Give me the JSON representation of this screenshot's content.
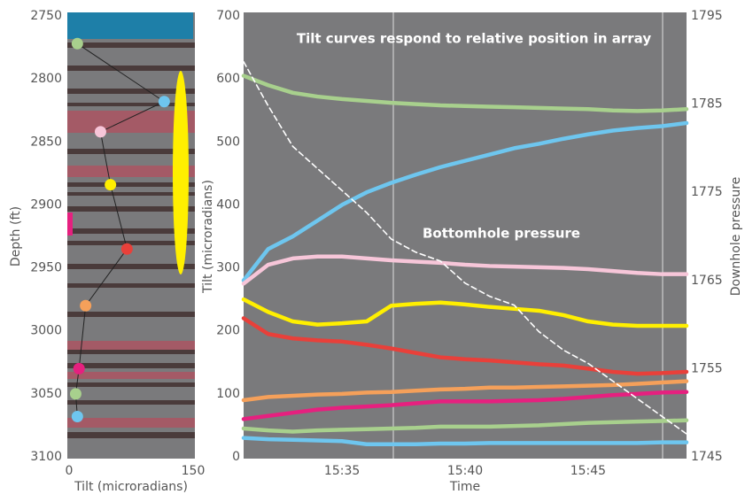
{
  "chart_data": [
    {
      "type": "scatter",
      "xlabel": "Tilt (microradians)",
      "ylabel": "Depth (ft)",
      "x": [
        10,
        115,
        38,
        50,
        70,
        20,
        12,
        8,
        10
      ],
      "y": [
        2772,
        2818,
        2842,
        2884,
        2935,
        2980,
        3030,
        3050,
        3068
      ],
      "colors": [
        "#a8d08d",
        "#6ec6ef",
        "#f7c6d9",
        "#ffef00",
        "#e8403a",
        "#f5a05a",
        "#e6207f",
        "#a8d08d",
        "#6ec6ef"
      ],
      "connect": true,
      "y_inverted": true,
      "xlim": [
        0,
        150
      ],
      "xticks": [
        0,
        150
      ],
      "ylim": [
        2750,
        3100
      ],
      "yticks": [
        2750,
        2800,
        2850,
        2900,
        2950,
        3000,
        3050,
        3100
      ]
    },
    {
      "type": "line",
      "title": "Tilt curves respond to relative position in array",
      "annotation": "Bottomhole pressure",
      "xlabel": "Time",
      "ylabel": "Tilt (microradians)",
      "y2label": "Downhole pressure",
      "x": [
        931,
        932,
        933,
        934,
        935,
        936,
        937,
        938,
        939,
        940,
        941,
        942,
        943,
        944,
        945,
        946,
        947,
        948,
        949
      ],
      "series": [
        {
          "color": "#a8d08d",
          "values": [
            605,
            590,
            578,
            572,
            568,
            565,
            562,
            560,
            558,
            557,
            556,
            555,
            554,
            553,
            552,
            550,
            549,
            550,
            552
          ]
        },
        {
          "color": "#6ec6ef",
          "values": [
            280,
            330,
            350,
            375,
            400,
            420,
            435,
            448,
            460,
            470,
            480,
            490,
            497,
            505,
            512,
            518,
            522,
            525,
            530
          ]
        },
        {
          "color": "#f7c6d9",
          "values": [
            275,
            305,
            315,
            318,
            318,
            315,
            312,
            310,
            308,
            305,
            303,
            302,
            301,
            300,
            298,
            295,
            292,
            290,
            290
          ]
        },
        {
          "color": "#ffef00",
          "values": [
            250,
            230,
            215,
            210,
            212,
            215,
            240,
            243,
            245,
            242,
            238,
            235,
            232,
            225,
            215,
            210,
            208,
            208,
            208
          ]
        },
        {
          "color": "#e8403a",
          "values": [
            220,
            195,
            188,
            185,
            183,
            178,
            172,
            165,
            158,
            155,
            153,
            150,
            147,
            145,
            140,
            135,
            132,
            133,
            135
          ]
        },
        {
          "color": "#f5a05a",
          "values": [
            90,
            95,
            97,
            99,
            100,
            102,
            103,
            105,
            107,
            108,
            110,
            110,
            111,
            112,
            113,
            114,
            116,
            118,
            120
          ]
        },
        {
          "color": "#e6207f",
          "values": [
            60,
            65,
            70,
            75,
            78,
            80,
            82,
            85,
            88,
            88,
            88,
            89,
            90,
            92,
            95,
            98,
            100,
            102,
            103
          ]
        },
        {
          "color": "#a8d08d",
          "values": [
            45,
            42,
            40,
            42,
            43,
            44,
            45,
            46,
            48,
            48,
            48,
            49,
            50,
            52,
            54,
            55,
            56,
            57,
            58
          ]
        },
        {
          "color": "#6ec6ef",
          "values": [
            30,
            28,
            27,
            26,
            25,
            20,
            20,
            20,
            21,
            21,
            22,
            22,
            22,
            22,
            22,
            22,
            22,
            23,
            23
          ]
        },
        {
          "color": "#ffffff",
          "dashed": true,
          "axis": "y2",
          "values": [
            1789.8,
            1784.8,
            1780.2,
            1777.7,
            1775.2,
            1772.7,
            1769.7,
            1768.2,
            1767.2,
            1764.7,
            1763.2,
            1762.2,
            1759.2,
            1757.1,
            1755.6,
            1753.6,
            1751.6,
            1749.6,
            1747.6
          ]
        }
      ],
      "xlim": [
        931,
        949
      ],
      "xticks": [
        {
          "value": 935,
          "label": "15:35"
        },
        {
          "value": 940,
          "label": "15:40"
        },
        {
          "value": 945,
          "label": "15:45"
        }
      ],
      "ylim": [
        0,
        700
      ],
      "yticks": [
        0,
        100,
        200,
        300,
        400,
        500,
        600,
        700
      ],
      "y2lim": [
        1745,
        1795
      ],
      "y2ticks": [
        1745,
        1755,
        1765,
        1775,
        1785,
        1795
      ]
    }
  ]
}
